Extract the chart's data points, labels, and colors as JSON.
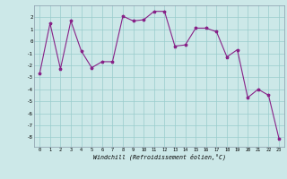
{
  "x": [
    0,
    1,
    2,
    3,
    4,
    5,
    6,
    7,
    8,
    9,
    10,
    11,
    12,
    13,
    14,
    15,
    16,
    17,
    18,
    19,
    20,
    21,
    22,
    23
  ],
  "y": [
    -2.7,
    1.5,
    -2.3,
    1.7,
    -0.8,
    -2.2,
    -1.7,
    -1.7,
    2.1,
    1.7,
    1.8,
    2.5,
    2.5,
    -0.4,
    -0.3,
    1.1,
    1.1,
    0.8,
    -1.3,
    -0.7,
    -4.7,
    -4.0,
    -4.5,
    -8.1
  ],
  "ylim": [
    -8.8,
    3.0
  ],
  "yticks": [
    -8,
    -7,
    -6,
    -5,
    -4,
    -3,
    -2,
    -1,
    0,
    1,
    2
  ],
  "xticks": [
    0,
    1,
    2,
    3,
    4,
    5,
    6,
    7,
    8,
    9,
    10,
    11,
    12,
    13,
    14,
    15,
    16,
    17,
    18,
    19,
    20,
    21,
    22,
    23
  ],
  "xlabel": "Windchill (Refroidissement éolien,°C)",
  "line_color": "#882288",
  "marker": "*",
  "bg_color": "#cce8e8",
  "grid_color": "#99cccc",
  "border_color": "#8899aa"
}
